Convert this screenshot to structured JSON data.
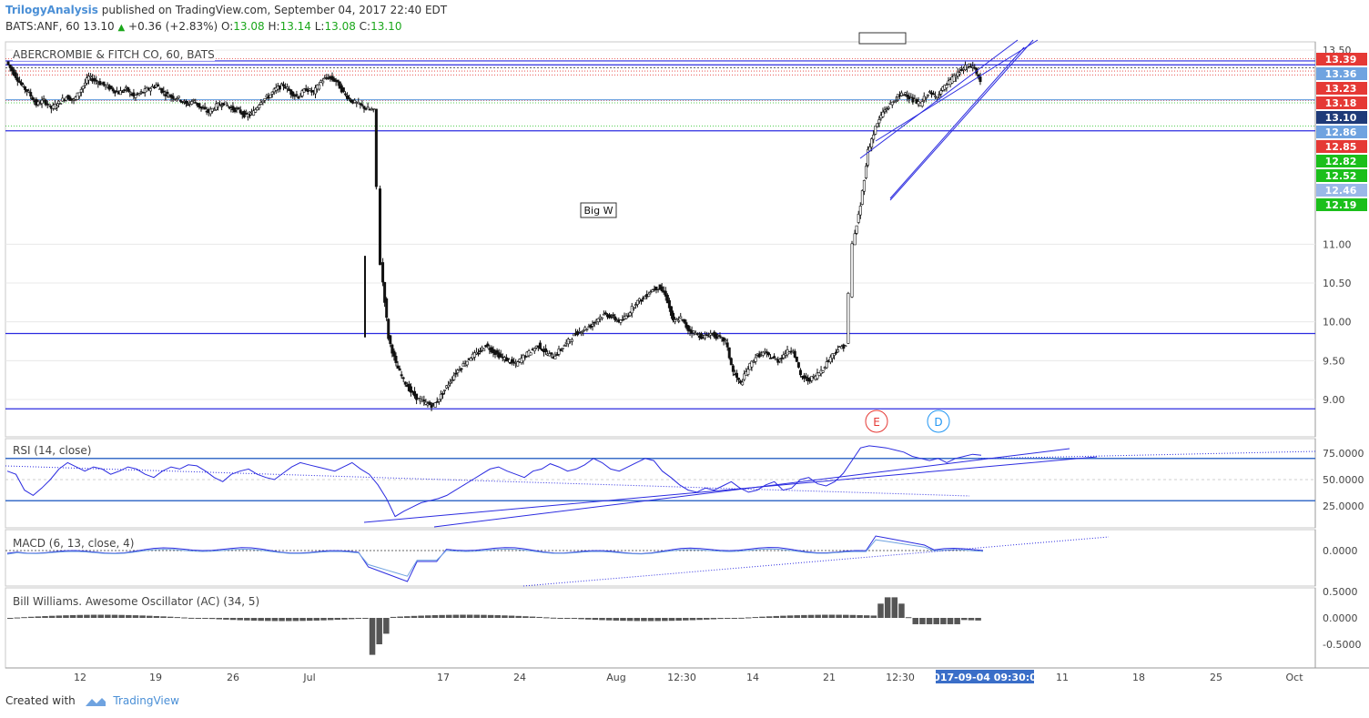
{
  "header": {
    "author": "TrilogyAnalysis",
    "published": "published on TradingView.com, September 04, 2017 22:40 EDT",
    "symbol": "BATS:ANF, 60",
    "last": "13.10",
    "change": "+0.36 (+2.83%)",
    "o_label": "O:",
    "o": "13.08",
    "h_label": "H:",
    "h": "13.14",
    "l_label": "L:",
    "l": "13.08",
    "c_label": "C:",
    "c": "13.10"
  },
  "colors": {
    "line": "#2b2be0",
    "dot_red": "#e53935",
    "dot_green": "#1bbf1b",
    "grid": "#e8e8e8",
    "label_blue_hilite": "#3a6ec8"
  },
  "chart_data": [
    {
      "type": "candlestick",
      "title": "ABERCROMBIE & FITCH CO, 60, BATS",
      "ylim": [
        8.75,
        13.55
      ],
      "y_ticks": [
        9.0,
        9.5,
        10.0,
        10.5,
        11.0,
        13.5
      ],
      "price_labels": [
        {
          "text": "13.39",
          "color": "#e53935"
        },
        {
          "text": "13.36",
          "color": "#6fa3e0"
        },
        {
          "text": "13.23",
          "color": "#e53935"
        },
        {
          "text": "13.18",
          "color": "#e53935"
        },
        {
          "text": "13.10",
          "color": "#1e3a78"
        },
        {
          "text": "12.86",
          "color": "#6fa3e0"
        },
        {
          "text": "12.85",
          "color": "#e53935"
        },
        {
          "text": "12.82",
          "color": "#1bbf1b"
        },
        {
          "text": "12.52",
          "color": "#1bbf1b"
        },
        {
          "text": "12.46",
          "color": "#9ab8e8"
        },
        {
          "text": "12.19",
          "color": "#1bbf1b"
        }
      ],
      "horizontal_levels": [
        13.36,
        13.31,
        12.46,
        9.85,
        8.88
      ],
      "annotations": [
        {
          "text": "Big W"
        },
        {
          "text": "E"
        },
        {
          "text": "D"
        }
      ],
      "x_labels": [
        "12",
        "19",
        "26",
        "Jul",
        "17",
        "24",
        "Aug",
        "12:30",
        "14",
        "21",
        "12:30",
        "11",
        "18",
        "25",
        "Oct"
      ],
      "crosshair_label": "2017-09-04 09:30:00",
      "close_path": [
        [
          0,
          13.35
        ],
        [
          1,
          13.2
        ],
        [
          2,
          13.05
        ],
        [
          3,
          12.95
        ],
        [
          4,
          12.8
        ],
        [
          5,
          12.85
        ],
        [
          6,
          12.75
        ],
        [
          7,
          12.82
        ],
        [
          8,
          12.9
        ],
        [
          9,
          12.85
        ],
        [
          10,
          13.0
        ],
        [
          11,
          13.15
        ],
        [
          12,
          13.1
        ],
        [
          13,
          13.05
        ],
        [
          14,
          13.0
        ],
        [
          15,
          12.95
        ],
        [
          16,
          13.0
        ],
        [
          17,
          12.9
        ],
        [
          18,
          12.95
        ],
        [
          19,
          13.0
        ],
        [
          20,
          13.05
        ],
        [
          21,
          12.95
        ],
        [
          22,
          12.9
        ],
        [
          23,
          12.88
        ],
        [
          24,
          12.8
        ],
        [
          25,
          12.85
        ],
        [
          26,
          12.75
        ],
        [
          27,
          12.7
        ],
        [
          28,
          12.78
        ],
        [
          29,
          12.82
        ],
        [
          30,
          12.75
        ],
        [
          31,
          12.72
        ],
        [
          32,
          12.65
        ],
        [
          33,
          12.7
        ],
        [
          34,
          12.85
        ],
        [
          35,
          12.9
        ],
        [
          36,
          13.0
        ],
        [
          37,
          13.05
        ],
        [
          38,
          12.95
        ],
        [
          39,
          12.9
        ],
        [
          40,
          13.0
        ],
        [
          41,
          12.95
        ],
        [
          42,
          13.1
        ],
        [
          43,
          13.15
        ],
        [
          44,
          13.1
        ],
        [
          45,
          12.95
        ],
        [
          46,
          12.85
        ],
        [
          47,
          12.8
        ],
        [
          48,
          12.75
        ],
        [
          49,
          12.72
        ],
        [
          50,
          10.75
        ],
        [
          51,
          9.8
        ],
        [
          52,
          9.45
        ],
        [
          53,
          9.25
        ],
        [
          54,
          9.1
        ],
        [
          55,
          9.0
        ],
        [
          56,
          8.95
        ],
        [
          57,
          8.92
        ],
        [
          58,
          9.05
        ],
        [
          59,
          9.2
        ],
        [
          60,
          9.35
        ],
        [
          61,
          9.45
        ],
        [
          62,
          9.55
        ],
        [
          63,
          9.6
        ],
        [
          64,
          9.7
        ],
        [
          65,
          9.62
        ],
        [
          66,
          9.55
        ],
        [
          67,
          9.5
        ],
        [
          68,
          9.45
        ],
        [
          69,
          9.55
        ],
        [
          70,
          9.62
        ],
        [
          71,
          9.7
        ],
        [
          72,
          9.6
        ],
        [
          73,
          9.55
        ],
        [
          74,
          9.65
        ],
        [
          75,
          9.75
        ],
        [
          76,
          9.85
        ],
        [
          77,
          9.9
        ],
        [
          78,
          9.95
        ],
        [
          79,
          10.05
        ],
        [
          80,
          10.1
        ],
        [
          81,
          10.05
        ],
        [
          82,
          10.0
        ],
        [
          83,
          10.1
        ],
        [
          84,
          10.25
        ],
        [
          85,
          10.3
        ],
        [
          86,
          10.4
        ],
        [
          87,
          10.45
        ],
        [
          88,
          10.35
        ],
        [
          89,
          10.0
        ],
        [
          90,
          10.05
        ],
        [
          91,
          9.9
        ],
        [
          92,
          9.85
        ],
        [
          93,
          9.8
        ],
        [
          94,
          9.85
        ],
        [
          95,
          9.8
        ],
        [
          96,
          9.75
        ],
        [
          97,
          9.35
        ],
        [
          98,
          9.2
        ],
        [
          99,
          9.4
        ],
        [
          100,
          9.55
        ],
        [
          101,
          9.6
        ],
        [
          102,
          9.55
        ],
        [
          103,
          9.5
        ],
        [
          104,
          9.6
        ],
        [
          105,
          9.65
        ],
        [
          106,
          9.3
        ],
        [
          107,
          9.25
        ],
        [
          108,
          9.3
        ],
        [
          109,
          9.4
        ],
        [
          110,
          9.55
        ],
        [
          111,
          9.65
        ],
        [
          112,
          9.7
        ],
        [
          113,
          11.0
        ],
        [
          114,
          11.5
        ],
        [
          115,
          12.2
        ],
        [
          116,
          12.5
        ],
        [
          117,
          12.7
        ],
        [
          118,
          12.8
        ],
        [
          119,
          12.9
        ],
        [
          120,
          12.95
        ],
        [
          121,
          12.85
        ],
        [
          122,
          12.8
        ],
        [
          123,
          12.95
        ],
        [
          124,
          12.9
        ],
        [
          125,
          13.0
        ],
        [
          126,
          13.1
        ],
        [
          127,
          13.2
        ],
        [
          128,
          13.28
        ],
        [
          129,
          13.3
        ],
        [
          130,
          13.1
        ]
      ]
    },
    {
      "type": "line",
      "title": "RSI (14, close)",
      "ylim": [
        10,
        90
      ],
      "y_ticks": [
        25.0,
        50.0,
        75.0
      ],
      "y_tick_labels": [
        "25.0000",
        "50.0000",
        "75.0000"
      ],
      "levels": [
        30,
        70
      ],
      "values": [
        58,
        55,
        40,
        35,
        42,
        50,
        60,
        66,
        62,
        58,
        62,
        60,
        55,
        58,
        62,
        60,
        55,
        52,
        58,
        62,
        60,
        64,
        63,
        58,
        52,
        48,
        55,
        58,
        60,
        55,
        52,
        50,
        56,
        62,
        66,
        64,
        62,
        60,
        58,
        62,
        66,
        60,
        55,
        45,
        32,
        15,
        20,
        24,
        28,
        30,
        32,
        35,
        40,
        45,
        50,
        55,
        60,
        62,
        58,
        55,
        52,
        58,
        60,
        65,
        62,
        58,
        60,
        64,
        70,
        66,
        60,
        58,
        62,
        66,
        70,
        68,
        58,
        52,
        45,
        40,
        38,
        42,
        40,
        44,
        48,
        42,
        38,
        40,
        45,
        48,
        40,
        42,
        50,
        52,
        46,
        44,
        48,
        56,
        68,
        80,
        82,
        81,
        80,
        78,
        76,
        72,
        70,
        68,
        70,
        66,
        70,
        72,
        74,
        73
      ]
    },
    {
      "type": "line",
      "title": "MACD (6, 13, close, 4)",
      "y_ticks": [
        0.0
      ],
      "y_tick_labels": [
        "0.0000"
      ],
      "values": []
    },
    {
      "type": "bar",
      "title": "Bill Williams. Awesome Oscillator (AC) (34, 5)",
      "y_ticks": [
        0.5,
        0.0,
        -0.5
      ],
      "y_tick_labels": [
        "0.5000",
        "0.0000",
        "-0.5000"
      ],
      "values": []
    }
  ],
  "footer": {
    "created_with": "Created with",
    "brand": "TradingView"
  }
}
